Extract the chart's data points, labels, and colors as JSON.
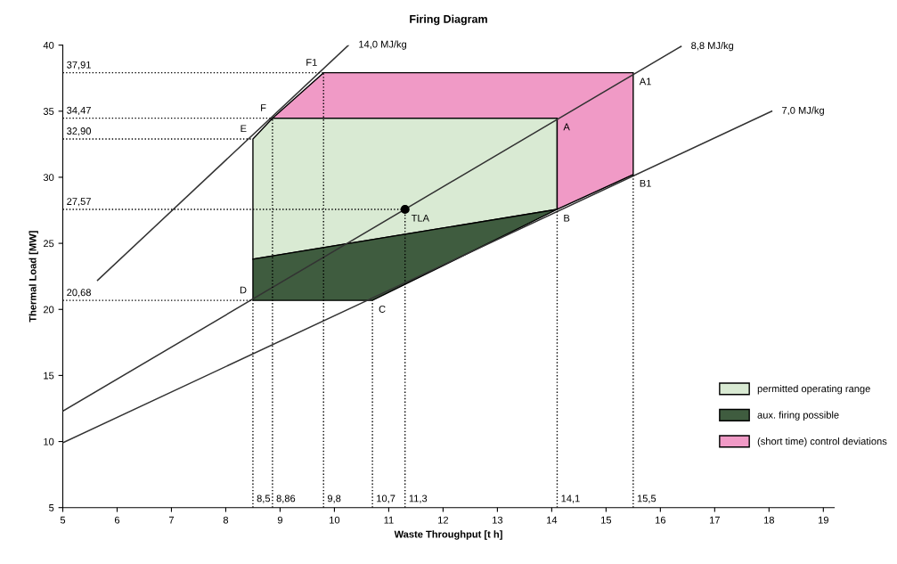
{
  "chart_data": {
    "type": "line",
    "title": "Firing Diagram",
    "xlabel": "Waste Throughput [t h]",
    "ylabel": "Thermal Load [MW]",
    "xlim": [
      5,
      19.2
    ],
    "ylim": [
      5,
      40
    ],
    "xticks": [
      5,
      6,
      7,
      8,
      9,
      10,
      11,
      12,
      13,
      14,
      15,
      16,
      17,
      18,
      19
    ],
    "yticks": [
      5,
      10,
      15,
      20,
      25,
      30,
      35,
      40
    ],
    "grid": false,
    "legend": "right",
    "marker": "none",
    "series": [
      {
        "type": "area",
        "name": "permitted operating range",
        "color": "#d9ead3",
        "x": [
          8.5,
          8.5,
          8.86,
          14.1,
          14.1,
          8.5
        ],
        "values": [
          23.8,
          32.9,
          34.47,
          34.47,
          27.57,
          23.8
        ]
      },
      {
        "type": "area",
        "name": "aux. firing possible",
        "color": "#3f5c3f",
        "x": [
          8.5,
          10.7,
          14.1,
          8.5
        ],
        "values": [
          20.68,
          20.68,
          27.57,
          23.8
        ]
      },
      {
        "type": "area",
        "name": "(short time) control deviations",
        "color": "#f09ac6",
        "x": [
          8.86,
          9.8,
          15.5,
          15.5,
          14.1,
          14.1
        ],
        "values": [
          34.47,
          37.91,
          37.91,
          30.2,
          27.57,
          34.47
        ]
      },
      {
        "name": "14,0 MJ/kg",
        "color": "#333333",
        "x": [
          5.64,
          10.26
        ],
        "values": [
          22.2,
          40
        ]
      },
      {
        "name": "8,8 MJ/kg",
        "color": "#333333",
        "x": [
          5,
          16.38
        ],
        "values": [
          12.3,
          39.9
        ]
      },
      {
        "name": "7,0 MJ/kg",
        "color": "#333333",
        "x": [
          5,
          18.05
        ],
        "values": [
          9.9,
          35.0
        ]
      },
      {
        "type": "line",
        "line_style": "dotted",
        "color": "#000000",
        "x": [
          5,
          9.8
        ],
        "values": [
          37.91,
          37.91
        ]
      },
      {
        "type": "line",
        "line_style": "dotted",
        "color": "#000000",
        "x": [
          5,
          8.86
        ],
        "values": [
          34.47,
          34.47
        ]
      },
      {
        "type": "line",
        "line_style": "dotted",
        "color": "#000000",
        "x": [
          5,
          8.5
        ],
        "values": [
          32.9,
          32.9
        ]
      },
      {
        "type": "line",
        "line_style": "dotted",
        "color": "#000000",
        "x": [
          5,
          11.3
        ],
        "values": [
          27.57,
          27.57
        ]
      },
      {
        "type": "line",
        "line_style": "dotted",
        "color": "#000000",
        "x": [
          5,
          8.5
        ],
        "values": [
          20.68,
          20.68
        ]
      },
      {
        "type": "line",
        "line_style": "dotted",
        "color": "#000000",
        "x": [
          8.5,
          8.5
        ],
        "values": [
          5,
          20.68
        ]
      },
      {
        "type": "line",
        "line_style": "dotted",
        "color": "#000000",
        "x": [
          8.86,
          8.86
        ],
        "values": [
          5,
          34.47
        ]
      },
      {
        "type": "line",
        "line_style": "dotted",
        "color": "#000000",
        "x": [
          9.8,
          9.8
        ],
        "values": [
          5,
          37.91
        ]
      },
      {
        "type": "line",
        "line_style": "dotted",
        "color": "#000000",
        "x": [
          10.7,
          10.7
        ],
        "values": [
          5,
          20.68
        ]
      },
      {
        "type": "line",
        "line_style": "dotted",
        "color": "#000000",
        "x": [
          11.3,
          11.3
        ],
        "values": [
          5,
          27.57
        ]
      },
      {
        "type": "line",
        "line_style": "dotted",
        "color": "#000000",
        "x": [
          14.1,
          14.1
        ],
        "values": [
          5,
          27.57
        ]
      },
      {
        "type": "line",
        "line_style": "dotted",
        "color": "#000000",
        "x": [
          15.5,
          15.5
        ],
        "values": [
          5,
          30.2
        ]
      },
      {
        "type": "scatter",
        "marker": "circle",
        "color": "#000000",
        "x": [
          11.3
        ],
        "values": [
          27.57
        ]
      }
    ],
    "annotations": [
      {
        "text": "37,91",
        "x": 5,
        "y": 37.91
      },
      {
        "text": "34,47",
        "x": 5,
        "y": 34.47
      },
      {
        "text": "32,90",
        "x": 5,
        "y": 32.9
      },
      {
        "text": "27,57",
        "x": 5,
        "y": 27.57
      },
      {
        "text": "20,68",
        "x": 5,
        "y": 20.68
      },
      {
        "text": "8,5",
        "x": 8.5,
        "y": 5
      },
      {
        "text": "8,86",
        "x": 8.86,
        "y": 5
      },
      {
        "text": "9,8",
        "x": 9.8,
        "y": 5
      },
      {
        "text": "10,7",
        "x": 10.7,
        "y": 5
      },
      {
        "text": "11,3",
        "x": 11.3,
        "y": 5
      },
      {
        "text": "14,1",
        "x": 14.1,
        "y": 5
      },
      {
        "text": "15,5",
        "x": 15.5,
        "y": 5
      },
      {
        "text": "F1",
        "x": 9.8,
        "y": 37.91
      },
      {
        "text": "F",
        "x": 8.86,
        "y": 34.47
      },
      {
        "text": "E",
        "x": 8.5,
        "y": 32.9
      },
      {
        "text": "D",
        "x": 8.5,
        "y": 20.68
      },
      {
        "text": "C",
        "x": 10.7,
        "y": 20.68
      },
      {
        "text": "TLA",
        "x": 11.3,
        "y": 27.57
      },
      {
        "text": "A",
        "x": 14.1,
        "y": 34.47
      },
      {
        "text": "A1",
        "x": 15.5,
        "y": 37.91
      },
      {
        "text": "B",
        "x": 14.1,
        "y": 27.57
      },
      {
        "text": "B1",
        "x": 15.5,
        "y": 30.2
      }
    ]
  }
}
